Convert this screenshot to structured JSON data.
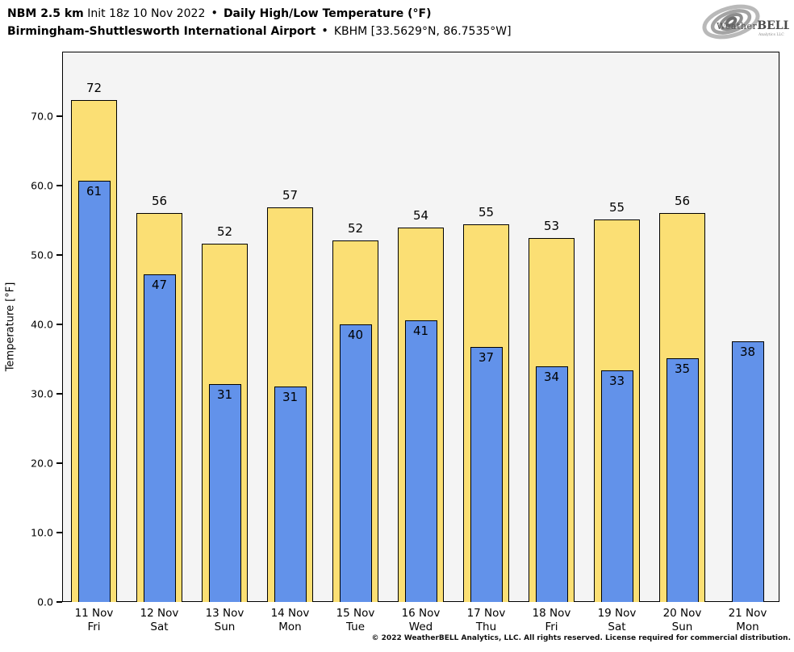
{
  "header": {
    "line1": {
      "model": "NBM 2.5 km",
      "init": "Init 18z 10 Nov 2022",
      "bullet": "•",
      "product": "Daily High/Low Temperature (°F)"
    },
    "line2": {
      "station": "Birmingham-Shuttlesworth International Airport",
      "bullet": "•",
      "id_coords": "KBHM [33.5629°N, 86.7535°W]"
    }
  },
  "logo": {
    "brand_weather": "Weather",
    "brand_bell": "BELL",
    "sub": "Analytics LLC"
  },
  "footer": {
    "copyright": "© 2022 WeatherBELL Analytics, LLC. All rights reserved. License required for commercial distribution."
  },
  "chart_data": {
    "type": "bar",
    "title": "NBM 2.5 km Init 18z 10 Nov 2022 • Daily High/Low Temperature (°F)",
    "subtitle": "Birmingham-Shuttlesworth International Airport • KBHM [33.5629°N, 86.7535°W]",
    "ylabel": "Temperature [°F]",
    "ylim": [
      0,
      79.3
    ],
    "yticks": [
      "0.0",
      "10.0",
      "20.0",
      "30.0",
      "40.0",
      "50.0",
      "60.0",
      "70.0"
    ],
    "grid": false,
    "legend_position": "none",
    "categories": [
      {
        "date": "11 Nov",
        "weekday": "Fri"
      },
      {
        "date": "12 Nov",
        "weekday": "Sat"
      },
      {
        "date": "13 Nov",
        "weekday": "Sun"
      },
      {
        "date": "14 Nov",
        "weekday": "Mon"
      },
      {
        "date": "15 Nov",
        "weekday": "Tue"
      },
      {
        "date": "16 Nov",
        "weekday": "Wed"
      },
      {
        "date": "17 Nov",
        "weekday": "Thu"
      },
      {
        "date": "18 Nov",
        "weekday": "Fri"
      },
      {
        "date": "19 Nov",
        "weekday": "Sat"
      },
      {
        "date": "20 Nov",
        "weekday": "Sun"
      },
      {
        "date": "21 Nov",
        "weekday": "Mon"
      }
    ],
    "series": [
      {
        "name": "Daily High",
        "color": "#fbdf74",
        "values": [
          72,
          56,
          52,
          57,
          52,
          54,
          55,
          53,
          55,
          56,
          null
        ],
        "drawn_heights": [
          72.3,
          56.0,
          51.6,
          56.9,
          52.1,
          53.9,
          54.4,
          52.5,
          55.1,
          56.1,
          null
        ]
      },
      {
        "name": "Daily Low",
        "color": "#6292ea",
        "values": [
          61,
          47,
          31,
          31,
          40,
          41,
          37,
          34,
          33,
          35,
          38
        ],
        "drawn_heights": [
          60.7,
          47.2,
          31.4,
          31.0,
          40.0,
          40.6,
          36.7,
          34.0,
          33.4,
          35.1,
          37.6
        ]
      }
    ],
    "colors": {
      "high_fill": "#fbdf74",
      "low_fill": "#6292ea",
      "bar_edge": "#000000",
      "plot_background": "#f4f4f4",
      "figure_background": "#ffffff"
    }
  }
}
